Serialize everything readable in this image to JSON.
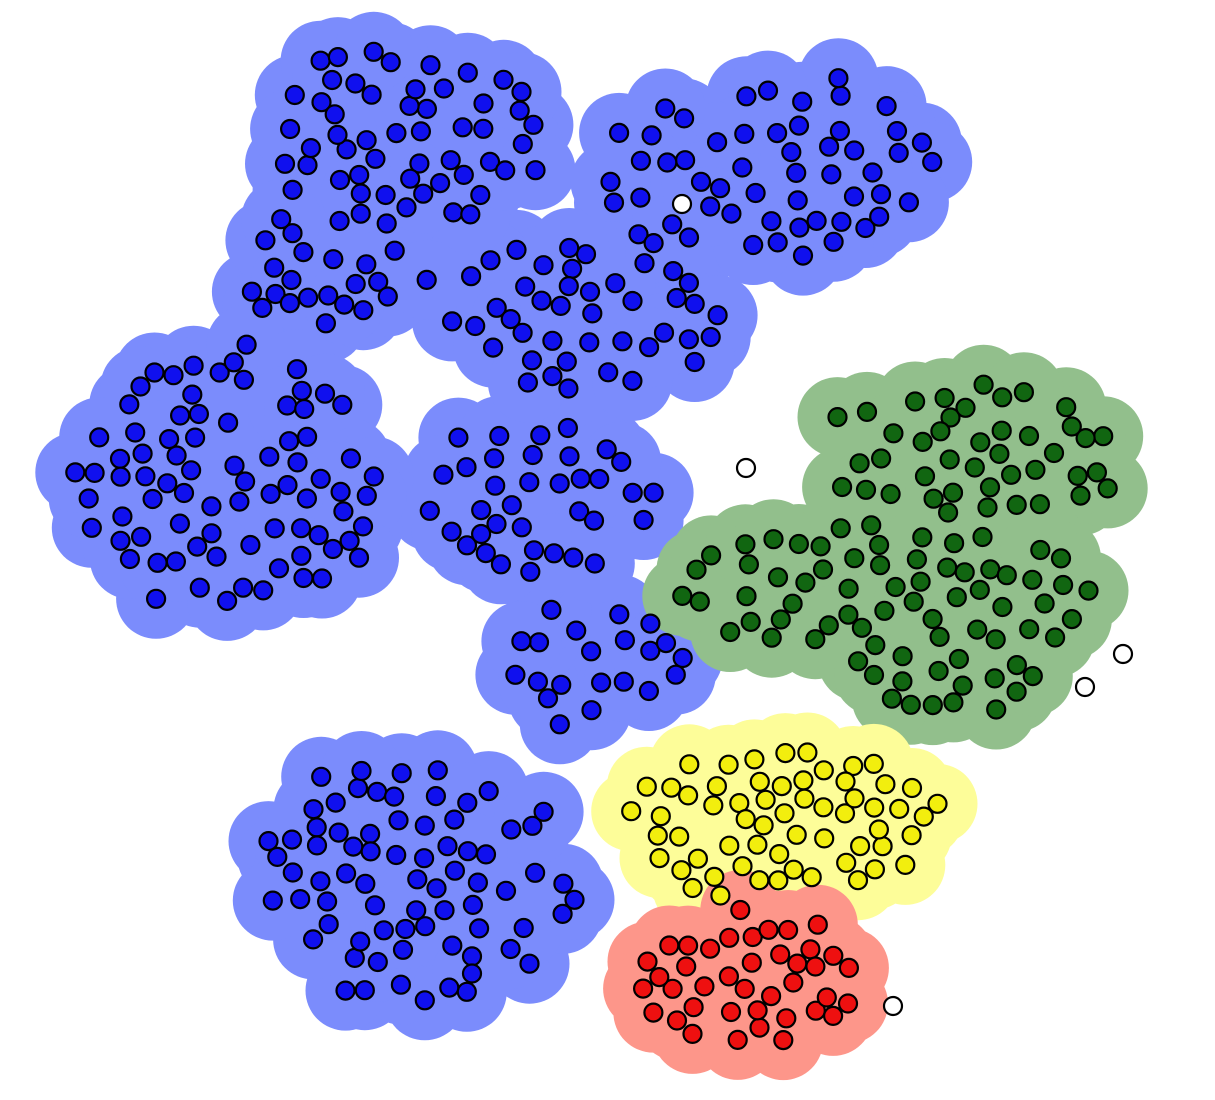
{
  "colors": {
    "blue": {
      "fill": "#1010ee",
      "halo": "#7b8cfc"
    },
    "green": {
      "fill": "#116611",
      "halo": "#92bf8c"
    },
    "yellow": {
      "fill": "#f2ee0e",
      "halo": "#fdfd99"
    },
    "red": {
      "fill": "#ee1010",
      "halo": "#fd968a"
    },
    "noise": {
      "fill": "#ffffff"
    }
  },
  "clusters": [
    {
      "name": "blue",
      "count": 385
    },
    {
      "name": "green",
      "count": 115
    },
    {
      "name": "yellow",
      "count": 60
    },
    {
      "name": "red",
      "count": 40
    },
    {
      "name": "noise",
      "count": 5
    }
  ]
}
